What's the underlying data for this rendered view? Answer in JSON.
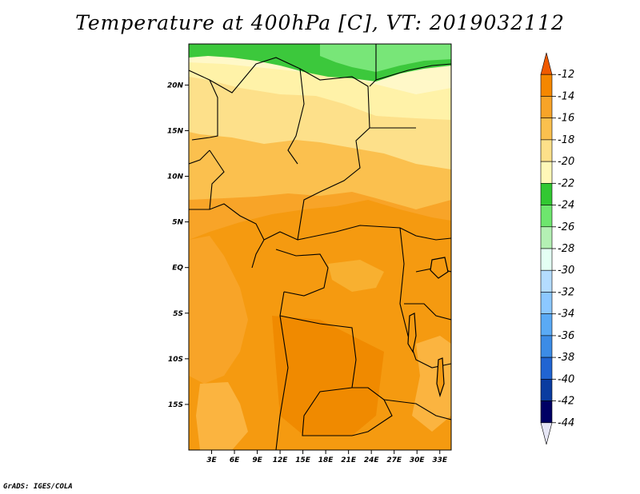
{
  "title": "Temperature at 400hPa [C], VT: 2019032112",
  "footer": "GrADS: IGES/COLA",
  "map": {
    "lon_range": [
      0,
      34.5
    ],
    "lat_range": [
      -20,
      24.5
    ],
    "lat_ticks": [
      {
        "v": 20,
        "label": "20N"
      },
      {
        "v": 15,
        "label": "15N"
      },
      {
        "v": 10,
        "label": "10N"
      },
      {
        "v": 5,
        "label": "5N"
      },
      {
        "v": 0,
        "label": "EQ"
      },
      {
        "v": -5,
        "label": "5S"
      },
      {
        "v": -10,
        "label": "10S"
      },
      {
        "v": -15,
        "label": "15S"
      }
    ],
    "lon_ticks": [
      {
        "v": 3,
        "label": "3E"
      },
      {
        "v": 6,
        "label": "6E"
      },
      {
        "v": 9,
        "label": "9E"
      },
      {
        "v": 12,
        "label": "12E"
      },
      {
        "v": 15,
        "label": "15E"
      },
      {
        "v": 18,
        "label": "18E"
      },
      {
        "v": 21,
        "label": "21E"
      },
      {
        "v": 24,
        "label": "24E"
      },
      {
        "v": 27,
        "label": "27E"
      },
      {
        "v": 30,
        "label": "30E"
      },
      {
        "v": 33,
        "label": "33E"
      }
    ]
  },
  "colorbar": {
    "labels": [
      "-12",
      "-14",
      "-16",
      "-18",
      "-20",
      "-22",
      "-24",
      "-26",
      "-28",
      "-30",
      "-32",
      "-34",
      "-36",
      "-38",
      "-40",
      "-42",
      "-44"
    ],
    "colors": [
      "#f05a00",
      "#f58700",
      "#f8a428",
      "#fbc04e",
      "#fde08a",
      "#fff8b8",
      "#32c832",
      "#6ee66e",
      "#b4f0b4",
      "#e4fff4",
      "#b4dcff",
      "#8cc8ff",
      "#5aaaf5",
      "#3c8ce6",
      "#2064d2",
      "#0a3ca0",
      "#000064",
      "#e6e6f5"
    ]
  }
}
